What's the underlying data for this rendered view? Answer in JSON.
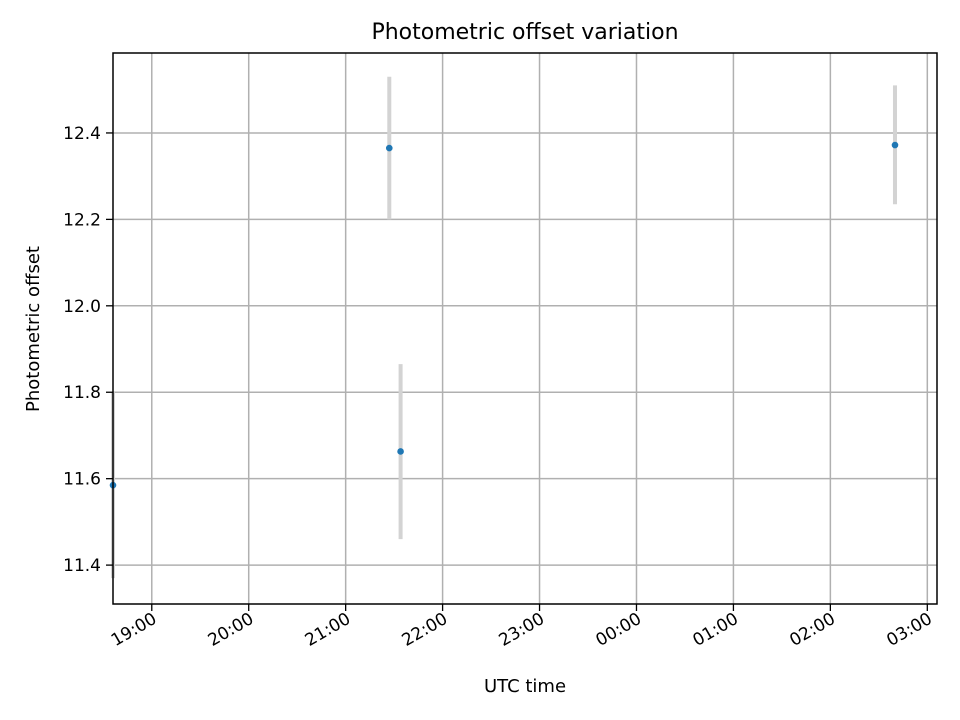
{
  "chart_data": {
    "type": "scatter",
    "title": "Photometric offset variation",
    "xlabel": "UTC time",
    "ylabel": "Photometric offset",
    "x_axis": {
      "kind": "time",
      "range": [
        "18:36",
        "03:06"
      ],
      "ticks": [
        "19:00",
        "20:00",
        "21:00",
        "22:00",
        "23:00",
        "00:00",
        "01:00",
        "02:00",
        "03:00"
      ]
    },
    "y_axis": {
      "range": [
        11.31,
        12.585
      ],
      "ticks": [
        "11.4",
        "11.6",
        "11.8",
        "12.0",
        "12.2",
        "12.4"
      ]
    },
    "grid": true,
    "points": [
      {
        "x": "18:36",
        "y": 11.585,
        "err_low": 11.37,
        "err_high": 11.8
      },
      {
        "x": "21:27",
        "y": 12.365,
        "err_low": 12.2,
        "err_high": 12.53
      },
      {
        "x": "21:34",
        "y": 11.663,
        "err_low": 11.46,
        "err_high": 11.865
      },
      {
        "x": "02:40",
        "y": 12.372,
        "err_low": 12.235,
        "err_high": 12.51
      }
    ],
    "colors": {
      "marker": "#1f77b4",
      "errorbar": "#d3d3d3"
    }
  }
}
